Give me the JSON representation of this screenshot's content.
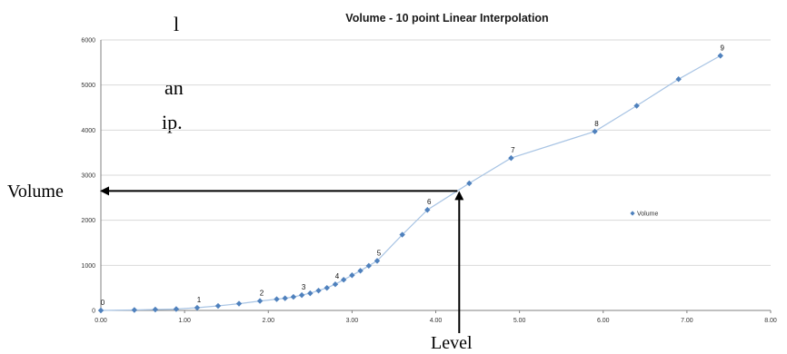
{
  "page_text": {
    "fragments": [
      "l",
      "an",
      "ip."
    ]
  },
  "annotations": {
    "volume_label": "Volume",
    "level_label": "Level",
    "arrow_color": "#000000"
  },
  "chart_data": {
    "type": "line",
    "title": "Volume - 10 point Linear Interpolation",
    "xlabel": "",
    "ylabel": "",
    "xlim": [
      0,
      8
    ],
    "ylim": [
      0,
      6000
    ],
    "x_ticks": [
      "0.00",
      "1.00",
      "2.00",
      "3.00",
      "4.00",
      "5.00",
      "6.00",
      "7.00",
      "8.00"
    ],
    "y_ticks": [
      "0",
      "1000",
      "2000",
      "3000",
      "4000",
      "5000",
      "6000"
    ],
    "grid": "horizontal",
    "legend": {
      "position": "right",
      "entries": [
        "Volume"
      ]
    },
    "colors": {
      "series": "#4F81BD",
      "line": "#A8C4E4",
      "grid": "#D9D9D9",
      "axis": "#808080"
    },
    "series": [
      {
        "name": "Volume",
        "x": [
          0.0,
          0.4,
          0.65,
          0.9,
          1.15,
          1.4,
          1.65,
          1.9,
          2.1,
          2.2,
          2.3,
          2.4,
          2.5,
          2.6,
          2.7,
          2.8,
          2.9,
          3.0,
          3.1,
          3.2,
          3.3,
          3.6,
          3.9,
          4.4,
          4.9,
          5.9,
          6.4,
          6.9,
          7.4
        ],
        "y": [
          0,
          10,
          20,
          30,
          60,
          100,
          150,
          210,
          250,
          270,
          300,
          340,
          380,
          440,
          500,
          580,
          680,
          780,
          880,
          990,
          1100,
          1680,
          2230,
          2820,
          3380,
          3970,
          4540,
          5130,
          5650
        ]
      }
    ],
    "point_labels": [
      {
        "text": "0",
        "x": 0.0,
        "y": 0
      },
      {
        "text": "1",
        "x": 1.15,
        "y": 60
      },
      {
        "text": "2",
        "x": 1.9,
        "y": 210
      },
      {
        "text": "3",
        "x": 2.4,
        "y": 340
      },
      {
        "text": "4",
        "x": 2.8,
        "y": 580
      },
      {
        "text": "5",
        "x": 3.3,
        "y": 1100
      },
      {
        "text": "6",
        "x": 3.9,
        "y": 2230
      },
      {
        "text": "7",
        "x": 4.9,
        "y": 3380
      },
      {
        "text": "8",
        "x": 5.9,
        "y": 3970
      },
      {
        "text": "9",
        "x": 7.4,
        "y": 5650
      }
    ],
    "lookup_example": {
      "level": 4.28,
      "volume": 2650
    }
  }
}
